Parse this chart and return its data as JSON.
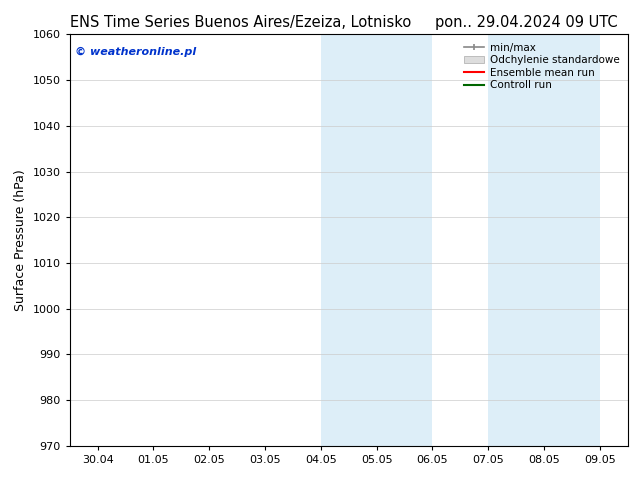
{
  "title_left": "ENS Time Series Buenos Aires/Ezeiza, Lotnisko",
  "title_right": "pon.. 29.04.2024 09 UTC",
  "ylabel": "Surface Pressure (hPa)",
  "ylim": [
    970,
    1060
  ],
  "yticks": [
    970,
    980,
    990,
    1000,
    1010,
    1020,
    1030,
    1040,
    1050,
    1060
  ],
  "xtick_labels": [
    "30.04",
    "01.05",
    "02.05",
    "03.05",
    "04.05",
    "05.05",
    "06.05",
    "07.05",
    "08.05",
    "09.05"
  ],
  "xtick_positions": [
    0,
    1,
    2,
    3,
    4,
    5,
    6,
    7,
    8,
    9
  ],
  "shaded_bands": [
    {
      "x_start": 4.0,
      "x_end": 4.5,
      "color": "#ddeef8"
    },
    {
      "x_start": 4.5,
      "x_end": 6.0,
      "color": "#ddeef8"
    },
    {
      "x_start": 7.0,
      "x_end": 7.5,
      "color": "#ddeef8"
    },
    {
      "x_start": 7.5,
      "x_end": 9.0,
      "color": "#ddeef8"
    }
  ],
  "watermark_text": "© weatheronline.pl",
  "watermark_color": "#0033cc",
  "watermark_fontsize": 8,
  "legend_items": [
    {
      "label": "min/max",
      "color": "#aaaaaa",
      "style": "errorbar"
    },
    {
      "label": "Odchylenie standardowe",
      "color": "#cccccc",
      "style": "bar"
    },
    {
      "label": "Ensemble mean run",
      "color": "#ff0000",
      "style": "line"
    },
    {
      "label": "Controll run",
      "color": "#008000",
      "style": "line"
    }
  ],
  "background_color": "#ffffff",
  "plot_bg_color": "#ffffff",
  "grid_color": "#cccccc",
  "title_fontsize": 10.5,
  "axis_label_fontsize": 9,
  "tick_fontsize": 8,
  "legend_fontsize": 7.5
}
